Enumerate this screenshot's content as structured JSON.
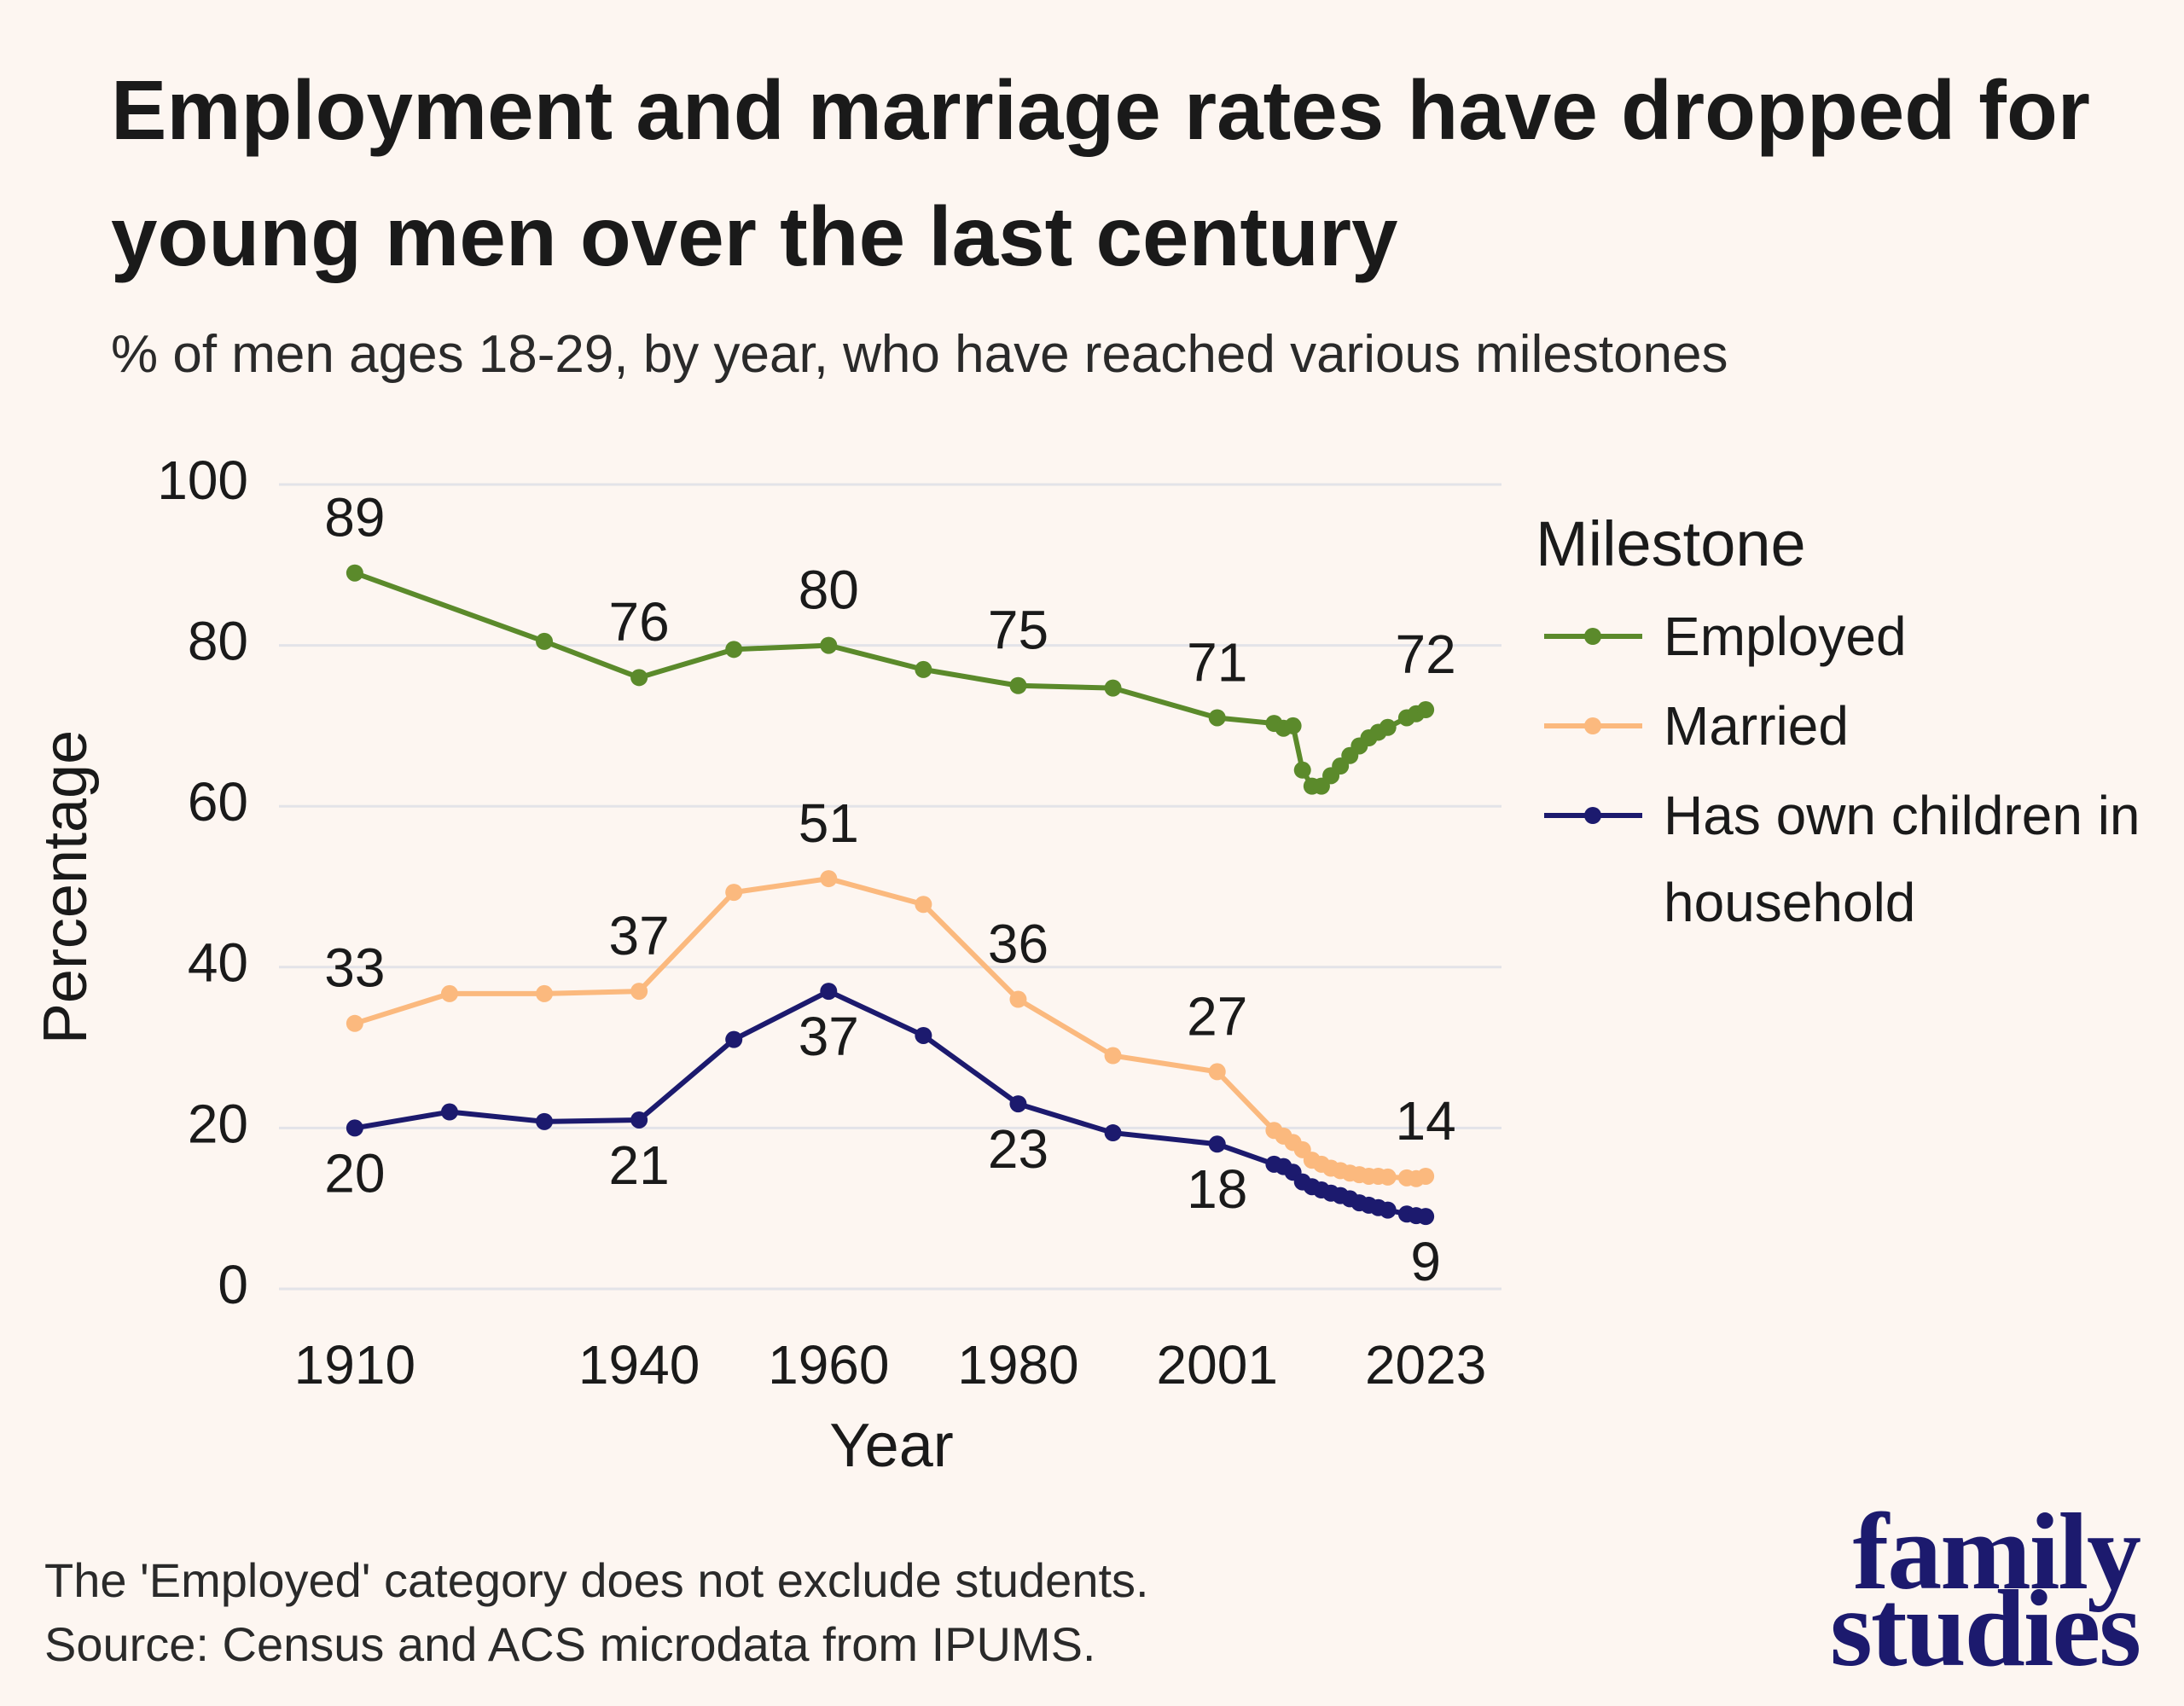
{
  "chart_data": {
    "type": "line",
    "title": "Employment and marriage rates have dropped for young men over the last century",
    "subtitle": "% of men ages 18-29, by year, who have reached various milestones",
    "x_label": "Year",
    "y_label": "Percentage",
    "legend_title": "Milestone",
    "xlim": [
      1902,
      2031
    ],
    "xticks": [
      1910,
      1940,
      1960,
      1980,
      2001,
      2023
    ],
    "ylim": [
      0,
      100
    ],
    "yticks": [
      0,
      20,
      40,
      60,
      80,
      100
    ],
    "grid": true,
    "series": [
      {
        "name": "Employed",
        "color": "#5b8a2b",
        "x": [
          1910,
          1930,
          1940,
          1950,
          1960,
          1970,
          1980,
          1990,
          2001,
          2007,
          2008,
          2009,
          2010,
          2011,
          2012,
          2013,
          2014,
          2015,
          2016,
          2017,
          2018,
          2019,
          2021,
          2022,
          2023
        ],
        "values": [
          89,
          80.5,
          76,
          79.5,
          80,
          77,
          75,
          74.7,
          71,
          70.3,
          69.7,
          70,
          64.5,
          62.5,
          62.5,
          63.8,
          65,
          66.3,
          67.5,
          68.5,
          69.2,
          69.8,
          71,
          71.5,
          72
        ],
        "value_labels": [
          "89",
          null,
          "76",
          null,
          "80",
          null,
          "75",
          null,
          "71",
          null,
          null,
          null,
          null,
          null,
          null,
          null,
          null,
          null,
          null,
          null,
          null,
          null,
          null,
          null,
          "72"
        ]
      },
      {
        "name": "Married",
        "color": "#fbb97e",
        "x": [
          1910,
          1920,
          1930,
          1940,
          1950,
          1960,
          1970,
          1980,
          1990,
          2001,
          2007,
          2008,
          2009,
          2010,
          2011,
          2012,
          2013,
          2014,
          2015,
          2016,
          2017,
          2018,
          2019,
          2021,
          2022,
          2023
        ],
        "values": [
          33,
          36.7,
          36.7,
          37,
          49.3,
          51,
          47.8,
          36,
          29,
          27,
          19.7,
          19,
          18.2,
          17.3,
          16,
          15.5,
          15,
          14.7,
          14.4,
          14.2,
          14,
          14,
          13.9,
          13.8,
          13.7,
          14
        ],
        "value_labels": [
          "33",
          null,
          null,
          "37",
          null,
          "51",
          null,
          "36",
          null,
          "27",
          null,
          null,
          null,
          null,
          null,
          null,
          null,
          null,
          null,
          null,
          null,
          null,
          null,
          null,
          null,
          "14"
        ]
      },
      {
        "name": "Has own children in household",
        "color": "#1c1a6e",
        "x": [
          1910,
          1920,
          1930,
          1940,
          1950,
          1960,
          1970,
          1980,
          1990,
          2001,
          2007,
          2008,
          2009,
          2010,
          2011,
          2012,
          2013,
          2014,
          2015,
          2016,
          2017,
          2018,
          2019,
          2021,
          2022,
          2023
        ],
        "values": [
          20,
          22,
          20.8,
          21,
          31,
          37,
          31.5,
          23,
          19.4,
          18,
          15.5,
          15.2,
          14.5,
          13.3,
          12.7,
          12.3,
          11.9,
          11.6,
          11.2,
          10.7,
          10.4,
          10.1,
          9.8,
          9.3,
          9.1,
          9
        ],
        "value_labels": [
          "20",
          null,
          null,
          "21",
          null,
          "37",
          null,
          "23",
          null,
          "18",
          null,
          null,
          null,
          null,
          null,
          null,
          null,
          null,
          null,
          null,
          null,
          null,
          null,
          null,
          null,
          "9"
        ]
      }
    ]
  },
  "footnotes": [
    "The 'Employed' category does not exclude students.",
    "Source: Census and ACS microdata from IPUMS."
  ],
  "logo": [
    "family",
    "studies"
  ]
}
